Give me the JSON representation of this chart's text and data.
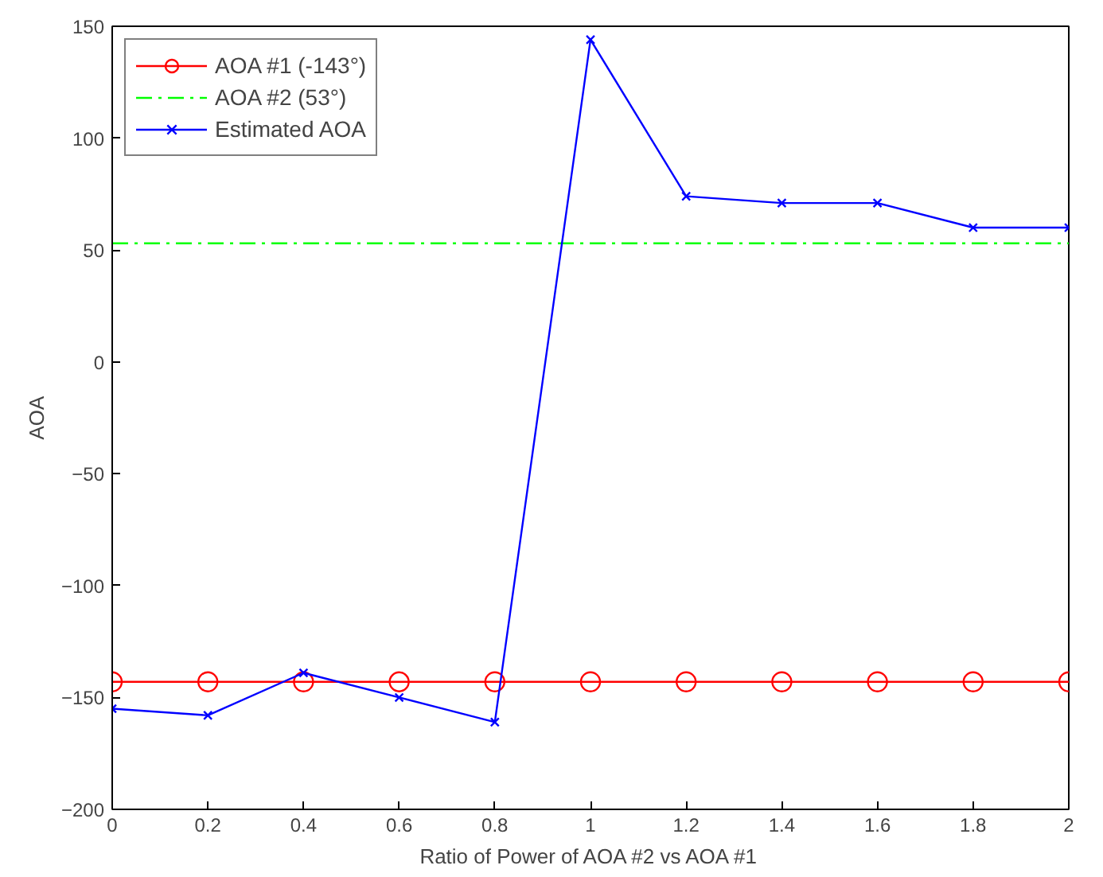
{
  "chart_data": {
    "type": "line",
    "xlabel": "Ratio of Power of AOA #2 vs AOA #1",
    "ylabel": "AOA",
    "x": [
      0,
      0.2,
      0.4,
      0.6,
      0.8,
      1,
      1.2,
      1.4,
      1.6,
      1.8,
      2
    ],
    "series": [
      {
        "name": "AOA #1 (-143°)",
        "color": "#ff0000",
        "marker": "circle",
        "line_style": "solid",
        "values": [
          -143,
          -143,
          -143,
          -143,
          -143,
          -143,
          -143,
          -143,
          -143,
          -143,
          -143
        ]
      },
      {
        "name": "AOA #2 (53°)",
        "color": "#00ff00",
        "marker": "none",
        "line_style": "dashed",
        "x": [
          0,
          2
        ],
        "values": [
          53,
          53
        ]
      },
      {
        "name": "Estimated AOA",
        "color": "#0000ff",
        "marker": "cross",
        "line_style": "solid",
        "values": [
          -155,
          -158,
          -139,
          -150,
          -161,
          144,
          74,
          71,
          71,
          60,
          60
        ]
      }
    ],
    "xlim": [
      0,
      2
    ],
    "ylim": [
      -200,
      150
    ],
    "xticks": [
      0,
      0.2,
      0.4,
      0.6,
      0.8,
      1,
      1.2,
      1.4,
      1.6,
      1.8,
      2
    ],
    "yticks": [
      -200,
      -150,
      -100,
      -50,
      0,
      50,
      100,
      150
    ],
    "grid": false,
    "legend": "top left"
  }
}
